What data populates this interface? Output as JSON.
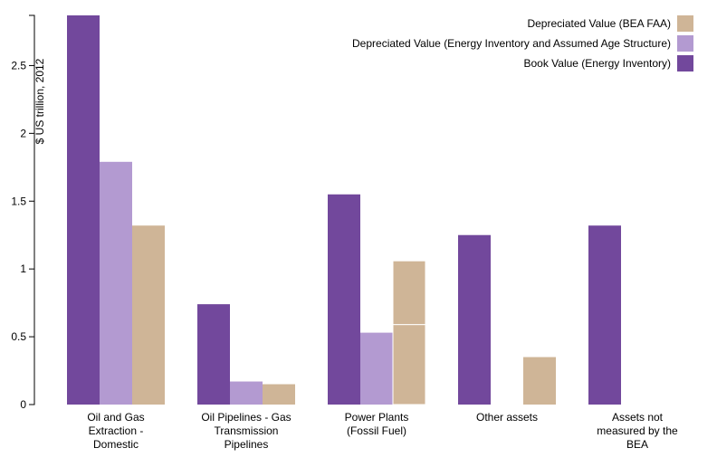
{
  "chart_data": {
    "type": "bar",
    "ylabel": "$ US trillion, 2012",
    "ylim": [
      0,
      2.87
    ],
    "yticks": [
      "0",
      "0.5",
      "1",
      "1.5",
      "2",
      "2.5"
    ],
    "ytick_values": [
      0,
      0.5,
      1,
      1.5,
      2,
      2.5
    ],
    "categories": [
      [
        "Oil and Gas",
        "Extraction -",
        "Domestic"
      ],
      [
        "Oil Pipelines - Gas",
        "Transmission",
        "Pipelines"
      ],
      [
        "Power Plants",
        "(Fossil Fuel)"
      ],
      [
        "Other assets"
      ],
      [
        "Assets not",
        "measured by the",
        "BEA"
      ]
    ],
    "legend_position": "top-right",
    "grid": false,
    "series": [
      {
        "name": "Book Value (Energy Inventory)",
        "color": "#72489c",
        "values": [
          2.87,
          0.74,
          1.55,
          1.25,
          1.32
        ]
      },
      {
        "name": "Depreciated Value (Energy Inventory and Assumed Age Structure)",
        "color": "#b39ad1",
        "values": [
          1.79,
          0.17,
          0.53,
          null,
          null
        ]
      },
      {
        "name": "Depreciated Value (BEA FAA)",
        "color": "#cfb597",
        "values": [
          1.32,
          0.15,
          1.06,
          0.35,
          null
        ],
        "segments": [
          null,
          null,
          [
            0.59,
            0.47
          ],
          null,
          null
        ]
      }
    ],
    "legend_order": [
      2,
      1,
      0
    ]
  }
}
